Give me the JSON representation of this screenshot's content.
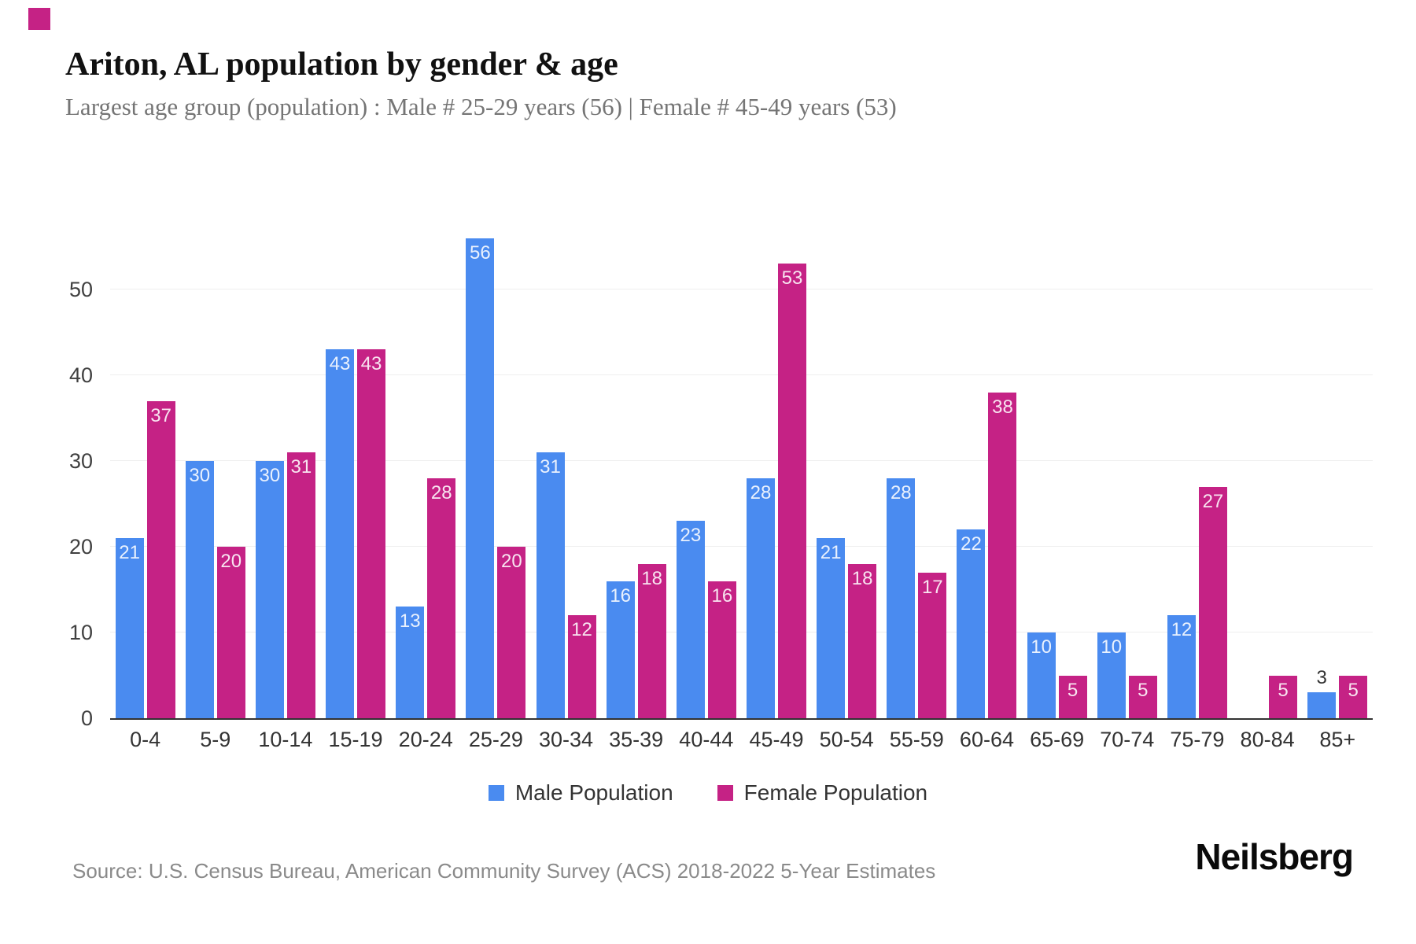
{
  "header": {
    "title": "Ariton, AL population by gender & age",
    "subtitle": "Largest age group (population) : Male # 25-29 years (56) | Female # 45-49 years (53)"
  },
  "chart_data": {
    "type": "bar",
    "title": "Ariton, AL population by gender & age",
    "subtitle": "Largest age group (population) : Male # 25-29 years (56) | Female # 45-49 years (53)",
    "categories": [
      "0-4",
      "5-9",
      "10-14",
      "15-19",
      "20-24",
      "25-29",
      "30-34",
      "35-39",
      "40-44",
      "45-49",
      "50-54",
      "55-59",
      "60-64",
      "65-69",
      "70-74",
      "75-79",
      "80-84",
      "85+"
    ],
    "series": [
      {
        "name": "Male Population",
        "color": "#4a8bf0",
        "values": [
          21,
          30,
          30,
          43,
          13,
          56,
          31,
          16,
          23,
          28,
          21,
          28,
          22,
          10,
          10,
          12,
          0,
          3
        ]
      },
      {
        "name": "Female Population",
        "color": "#c52285",
        "values": [
          37,
          20,
          31,
          43,
          28,
          20,
          12,
          18,
          16,
          53,
          18,
          17,
          38,
          5,
          5,
          27,
          5,
          5
        ]
      }
    ],
    "xlabel": "",
    "ylabel": "",
    "ylim": [
      0,
      57
    ],
    "yticks": [
      0,
      10,
      20,
      30,
      40,
      50
    ],
    "grid": true,
    "legend_position": "bottom",
    "bar_value_labels": true
  },
  "colors": {
    "male": "#4a8bf0",
    "female": "#c52285",
    "gridline": "#efefef",
    "axis_line": "#333333",
    "corner_mark": "#c52285",
    "label_inside": "#ffffff",
    "label_outside": "#333333"
  },
  "footer": {
    "source": "Source: U.S. Census Bureau, American Community Survey (ACS) 2018-2022 5-Year Estimates",
    "brand": "Neilsberg"
  }
}
